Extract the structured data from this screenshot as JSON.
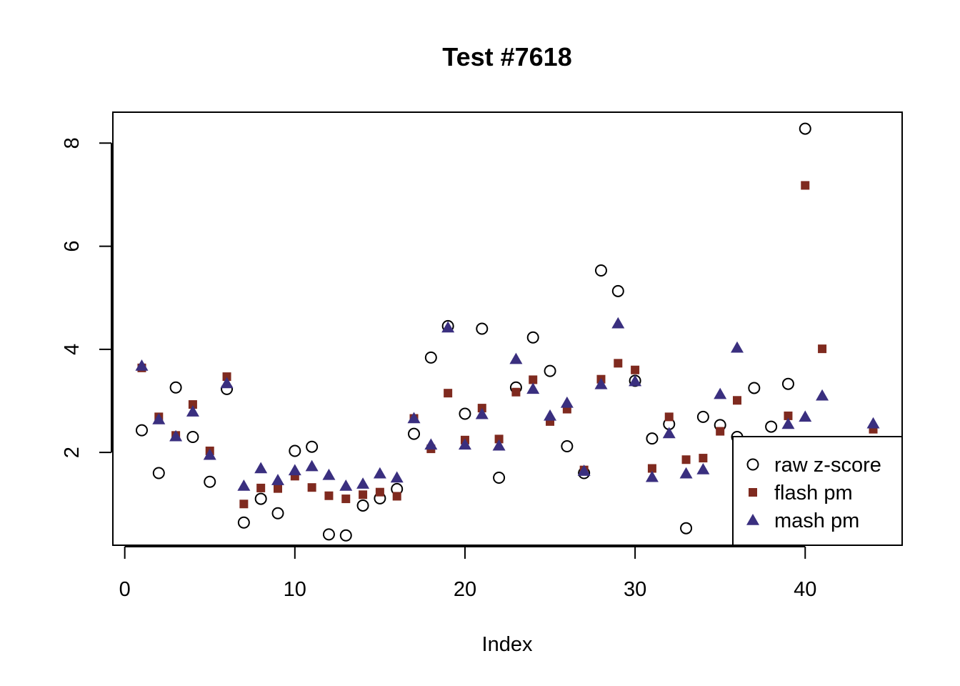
{
  "chart_data": {
    "type": "scatter",
    "title": "Test #7618",
    "xlabel": "Index",
    "ylabel": "",
    "xlim": [
      -0.7,
      45.7
    ],
    "ylim": [
      0.2,
      8.6
    ],
    "xticks": [
      0,
      10,
      20,
      30,
      40
    ],
    "yticks": [
      2,
      4,
      6,
      8
    ],
    "legend_position": "bottom-right",
    "colors": {
      "raw": "#000000",
      "flash": "#7f2a1f",
      "mash": "#3a2f7f"
    },
    "series": [
      {
        "name": "raw z-score",
        "marker": "open-circle",
        "x": [
          1,
          2,
          3,
          4,
          5,
          6,
          7,
          8,
          9,
          10,
          11,
          12,
          13,
          14,
          15,
          16,
          17,
          18,
          19,
          20,
          21,
          22,
          23,
          24,
          25,
          26,
          27,
          28,
          29,
          30,
          31,
          32,
          33,
          34,
          35,
          36,
          37,
          38,
          39,
          40
        ],
        "y": [
          2.43,
          1.6,
          3.26,
          2.3,
          1.43,
          3.23,
          0.64,
          1.1,
          0.82,
          2.03,
          2.11,
          0.41,
          0.39,
          0.97,
          1.11,
          1.29,
          2.36,
          3.84,
          4.45,
          2.75,
          4.4,
          1.51,
          3.26,
          4.23,
          3.58,
          2.12,
          1.6,
          5.53,
          5.13,
          3.39,
          2.27,
          2.55,
          0.53,
          2.69,
          2.53,
          2.3,
          3.25,
          2.5,
          3.33,
          8.28
        ]
      },
      {
        "name": "flash pm",
        "marker": "filled-square",
        "x": [
          1,
          2,
          3,
          4,
          5,
          6,
          7,
          8,
          9,
          10,
          11,
          12,
          13,
          14,
          15,
          16,
          17,
          18,
          19,
          20,
          21,
          22,
          23,
          24,
          25,
          26,
          27,
          28,
          29,
          30,
          31,
          32,
          33,
          34,
          35,
          36,
          39,
          40,
          41,
          44
        ],
        "y": [
          3.64,
          2.69,
          2.33,
          2.93,
          2.03,
          3.47,
          1.0,
          1.31,
          1.3,
          1.54,
          1.32,
          1.16,
          1.1,
          1.18,
          1.23,
          1.15,
          2.66,
          2.07,
          3.15,
          2.24,
          2.86,
          2.26,
          3.17,
          3.41,
          2.6,
          2.84,
          1.66,
          3.42,
          3.73,
          3.6,
          1.69,
          2.69,
          1.86,
          1.89,
          2.41,
          3.01,
          2.71,
          7.18,
          4.01,
          2.45
        ]
      },
      {
        "name": "mash pm",
        "marker": "filled-triangle",
        "x": [
          1,
          2,
          3,
          4,
          5,
          6,
          7,
          8,
          9,
          10,
          11,
          12,
          13,
          14,
          15,
          16,
          17,
          18,
          19,
          20,
          21,
          22,
          23,
          24,
          25,
          26,
          27,
          28,
          29,
          30,
          31,
          32,
          33,
          34,
          35,
          36,
          39,
          40,
          41,
          44
        ],
        "y": [
          3.68,
          2.64,
          2.31,
          2.79,
          1.95,
          3.34,
          1.35,
          1.69,
          1.46,
          1.65,
          1.73,
          1.56,
          1.35,
          1.39,
          1.59,
          1.51,
          2.66,
          2.15,
          4.42,
          2.15,
          2.74,
          2.13,
          3.81,
          3.23,
          2.71,
          2.96,
          1.64,
          3.32,
          4.5,
          3.38,
          1.52,
          2.37,
          1.59,
          1.67,
          3.13,
          4.03,
          2.55,
          2.69,
          3.1,
          2.56
        ]
      }
    ]
  }
}
